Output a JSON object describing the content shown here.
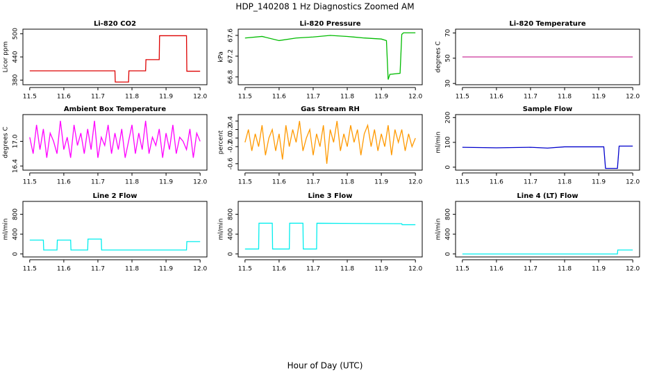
{
  "title": "HDP_140208  1 Hz Diagnostics Zoomed AM",
  "xlabel": "Hour of Day (UTC)",
  "chart_data": [
    {
      "type": "line",
      "title": "Li-820 CO2",
      "ylabel": "Licor ppm",
      "color": "#dd0000",
      "x": [
        11.5,
        11.75,
        11.751,
        11.79,
        11.791,
        11.84,
        11.841,
        11.88,
        11.881,
        11.96,
        11.961,
        12.0
      ],
      "values": [
        404,
        404,
        375,
        375,
        404,
        404,
        433,
        433,
        495,
        495,
        403,
        403
      ],
      "xlim": [
        11.48,
        12.02
      ],
      "xticks": [
        11.5,
        11.6,
        11.7,
        11.8,
        11.9,
        {
          "value": 12,
          "label": "12.0"
        }
      ],
      "ylim": [
        368,
        512
      ],
      "yticks": [
        380,
        440,
        500
      ]
    },
    {
      "type": "line",
      "title": "Li-820 Pressure",
      "ylabel": "kPa",
      "color": "#00bb00",
      "x": [
        11.5,
        11.55,
        11.6,
        11.65,
        11.7,
        11.75,
        11.8,
        11.85,
        11.9,
        11.915,
        11.92,
        11.925,
        11.955,
        11.96,
        11.965,
        12.0
      ],
      "values": [
        67.55,
        67.58,
        67.5,
        67.55,
        67.57,
        67.6,
        67.58,
        67.55,
        67.53,
        67.5,
        66.75,
        66.85,
        66.87,
        67.62,
        67.65,
        67.65
      ],
      "xlim": [
        11.48,
        12.02
      ],
      "xticks": [
        11.5,
        11.6,
        11.7,
        11.8,
        11.9,
        {
          "value": 12,
          "label": "12.0"
        }
      ],
      "ylim": [
        66.65,
        67.72
      ],
      "yticks": [
        66.8,
        67.2,
        67.6
      ]
    },
    {
      "type": "line",
      "title": "Li-820 Temperature",
      "ylabel": "degrees C",
      "color": "#cc3399",
      "x": [
        11.5,
        12.0
      ],
      "values": [
        51,
        51
      ],
      "xlim": [
        11.48,
        12.02
      ],
      "xticks": [
        11.5,
        11.6,
        11.7,
        11.8,
        11.9,
        {
          "value": 12,
          "label": "12.0"
        }
      ],
      "ylim": [
        29,
        73
      ],
      "yticks": [
        30,
        50,
        70
      ]
    },
    {
      "type": "line",
      "title": "Ambient Box Temperature",
      "ylabel": "degrees C",
      "color": "#ff00ff",
      "x": [
        11.5,
        11.51,
        11.52,
        11.53,
        11.54,
        11.55,
        11.56,
        11.57,
        11.58,
        11.59,
        11.6,
        11.61,
        11.62,
        11.63,
        11.64,
        11.65,
        11.66,
        11.67,
        11.68,
        11.69,
        11.7,
        11.71,
        11.72,
        11.73,
        11.74,
        11.75,
        11.76,
        11.77,
        11.78,
        11.79,
        11.8,
        11.81,
        11.82,
        11.83,
        11.84,
        11.85,
        11.86,
        11.87,
        11.88,
        11.89,
        11.9,
        11.91,
        11.92,
        11.93,
        11.94,
        11.95,
        11.96,
        11.97,
        11.98,
        11.99,
        12.0
      ],
      "values": [
        17.1,
        16.7,
        17.4,
        16.8,
        17.3,
        16.6,
        17.2,
        17.0,
        16.7,
        17.5,
        16.8,
        17.1,
        16.6,
        17.4,
        16.9,
        17.2,
        16.7,
        17.3,
        16.8,
        17.5,
        16.6,
        17.1,
        16.9,
        17.4,
        16.7,
        17.2,
        16.8,
        17.3,
        16.6,
        17.0,
        17.4,
        16.7,
        17.2,
        16.8,
        17.5,
        16.7,
        17.1,
        16.9,
        17.3,
        16.6,
        17.2,
        16.8,
        17.4,
        16.7,
        17.1,
        17.0,
        16.8,
        17.3,
        16.6,
        17.2,
        17.0
      ],
      "xlim": [
        11.48,
        12.02
      ],
      "xticks": [
        11.5,
        11.6,
        11.7,
        11.8,
        11.9,
        {
          "value": 12,
          "label": "12.0"
        }
      ],
      "ylim": [
        16.3,
        17.65
      ],
      "yticks": [
        16.4,
        {
          "value": 17,
          "label": "17.0"
        }
      ]
    },
    {
      "type": "line",
      "title": "Gas Stream RH",
      "ylabel": "percent",
      "color": "#ff9900",
      "x": [
        11.5,
        11.51,
        11.52,
        11.53,
        11.54,
        11.55,
        11.56,
        11.57,
        11.58,
        11.59,
        11.6,
        11.61,
        11.62,
        11.63,
        11.64,
        11.65,
        11.66,
        11.67,
        11.68,
        11.69,
        11.7,
        11.71,
        11.72,
        11.73,
        11.74,
        11.75,
        11.76,
        11.77,
        11.78,
        11.79,
        11.8,
        11.81,
        11.82,
        11.83,
        11.84,
        11.85,
        11.86,
        11.87,
        11.88,
        11.89,
        11.9,
        11.91,
        11.92,
        11.93,
        11.94,
        11.95,
        11.96,
        11.97,
        11.98,
        11.99,
        12.0
      ],
      "values": [
        -0.1,
        0.2,
        -0.3,
        0.1,
        -0.2,
        0.3,
        -0.4,
        0.0,
        0.2,
        -0.3,
        0.1,
        -0.5,
        0.3,
        -0.2,
        0.2,
        -0.1,
        0.4,
        -0.3,
        0.0,
        0.2,
        -0.4,
        0.1,
        -0.2,
        0.3,
        -0.6,
        0.2,
        -0.1,
        0.4,
        -0.3,
        0.1,
        -0.2,
        0.3,
        -0.1,
        0.2,
        -0.4,
        0.1,
        0.3,
        -0.2,
        0.2,
        -0.3,
        0.1,
        -0.2,
        0.3,
        -0.4,
        0.2,
        -0.1,
        0.2,
        -0.3,
        0.1,
        -0.2,
        0.0
      ],
      "xlim": [
        11.48,
        12.02
      ],
      "xticks": [
        11.5,
        11.6,
        11.7,
        11.8,
        11.9,
        {
          "value": 12,
          "label": "12.0"
        }
      ],
      "ylim": [
        -0.75,
        0.55
      ],
      "yticks": [
        -0.6,
        -0.2,
        {
          "value": 0,
          "label": "0.0"
        },
        0.2,
        0.4
      ]
    },
    {
      "type": "line",
      "title": "Sample Flow",
      "ylabel": "ml/min",
      "color": "#0000cc",
      "x": [
        11.5,
        11.6,
        11.7,
        11.75,
        11.8,
        11.915,
        11.92,
        11.955,
        11.96,
        12.0
      ],
      "values": [
        80,
        78,
        80,
        77,
        82,
        82,
        -5,
        -5,
        85,
        85
      ],
      "xlim": [
        11.48,
        12.02
      ],
      "xticks": [
        11.5,
        11.6,
        11.7,
        11.8,
        11.9,
        {
          "value": 12,
          "label": "12.0"
        }
      ],
      "ylim": [
        -12,
        212
      ],
      "yticks": [
        0,
        100,
        200
      ]
    },
    {
      "type": "line",
      "title": "Line 2 Flow",
      "ylabel": "ml/min",
      "color": "#00eeee",
      "x": [
        11.5,
        11.54,
        11.541,
        11.58,
        11.581,
        11.62,
        11.621,
        11.67,
        11.671,
        11.71,
        11.711,
        11.96,
        11.961,
        12.0
      ],
      "values": [
        280,
        280,
        80,
        80,
        280,
        280,
        80,
        80,
        300,
        300,
        80,
        80,
        250,
        250
      ],
      "xlim": [
        11.48,
        12.02
      ],
      "xticks": [
        11.5,
        11.6,
        11.7,
        11.8,
        11.9,
        {
          "value": 12,
          "label": "12.0"
        }
      ],
      "ylim": [
        -60,
        1060
      ],
      "yticks": [
        0,
        400,
        800
      ]
    },
    {
      "type": "line",
      "title": "Line 3 Flow",
      "ylabel": "ml/min",
      "color": "#00eeee",
      "x": [
        11.5,
        11.54,
        11.541,
        11.58,
        11.581,
        11.63,
        11.631,
        11.67,
        11.671,
        11.71,
        11.711,
        11.96,
        11.961,
        12.0
      ],
      "values": [
        100,
        100,
        620,
        620,
        100,
        100,
        620,
        620,
        100,
        100,
        620,
        610,
        590,
        590
      ],
      "xlim": [
        11.48,
        12.02
      ],
      "xticks": [
        11.5,
        11.6,
        11.7,
        11.8,
        11.9,
        {
          "value": 12,
          "label": "12.0"
        }
      ],
      "ylim": [
        -60,
        1060
      ],
      "yticks": [
        0,
        400,
        800
      ]
    },
    {
      "type": "line",
      "title": "Line 4 (LT) Flow",
      "ylabel": "ml/min",
      "color": "#00eeee",
      "x": [
        11.5,
        11.955,
        11.956,
        12.0
      ],
      "values": [
        0,
        0,
        80,
        80
      ],
      "xlim": [
        11.48,
        12.02
      ],
      "xticks": [
        11.5,
        11.6,
        11.7,
        11.8,
        11.9,
        {
          "value": 12,
          "label": "12.0"
        }
      ],
      "ylim": [
        -60,
        1060
      ],
      "yticks": [
        0,
        400,
        800
      ]
    }
  ]
}
